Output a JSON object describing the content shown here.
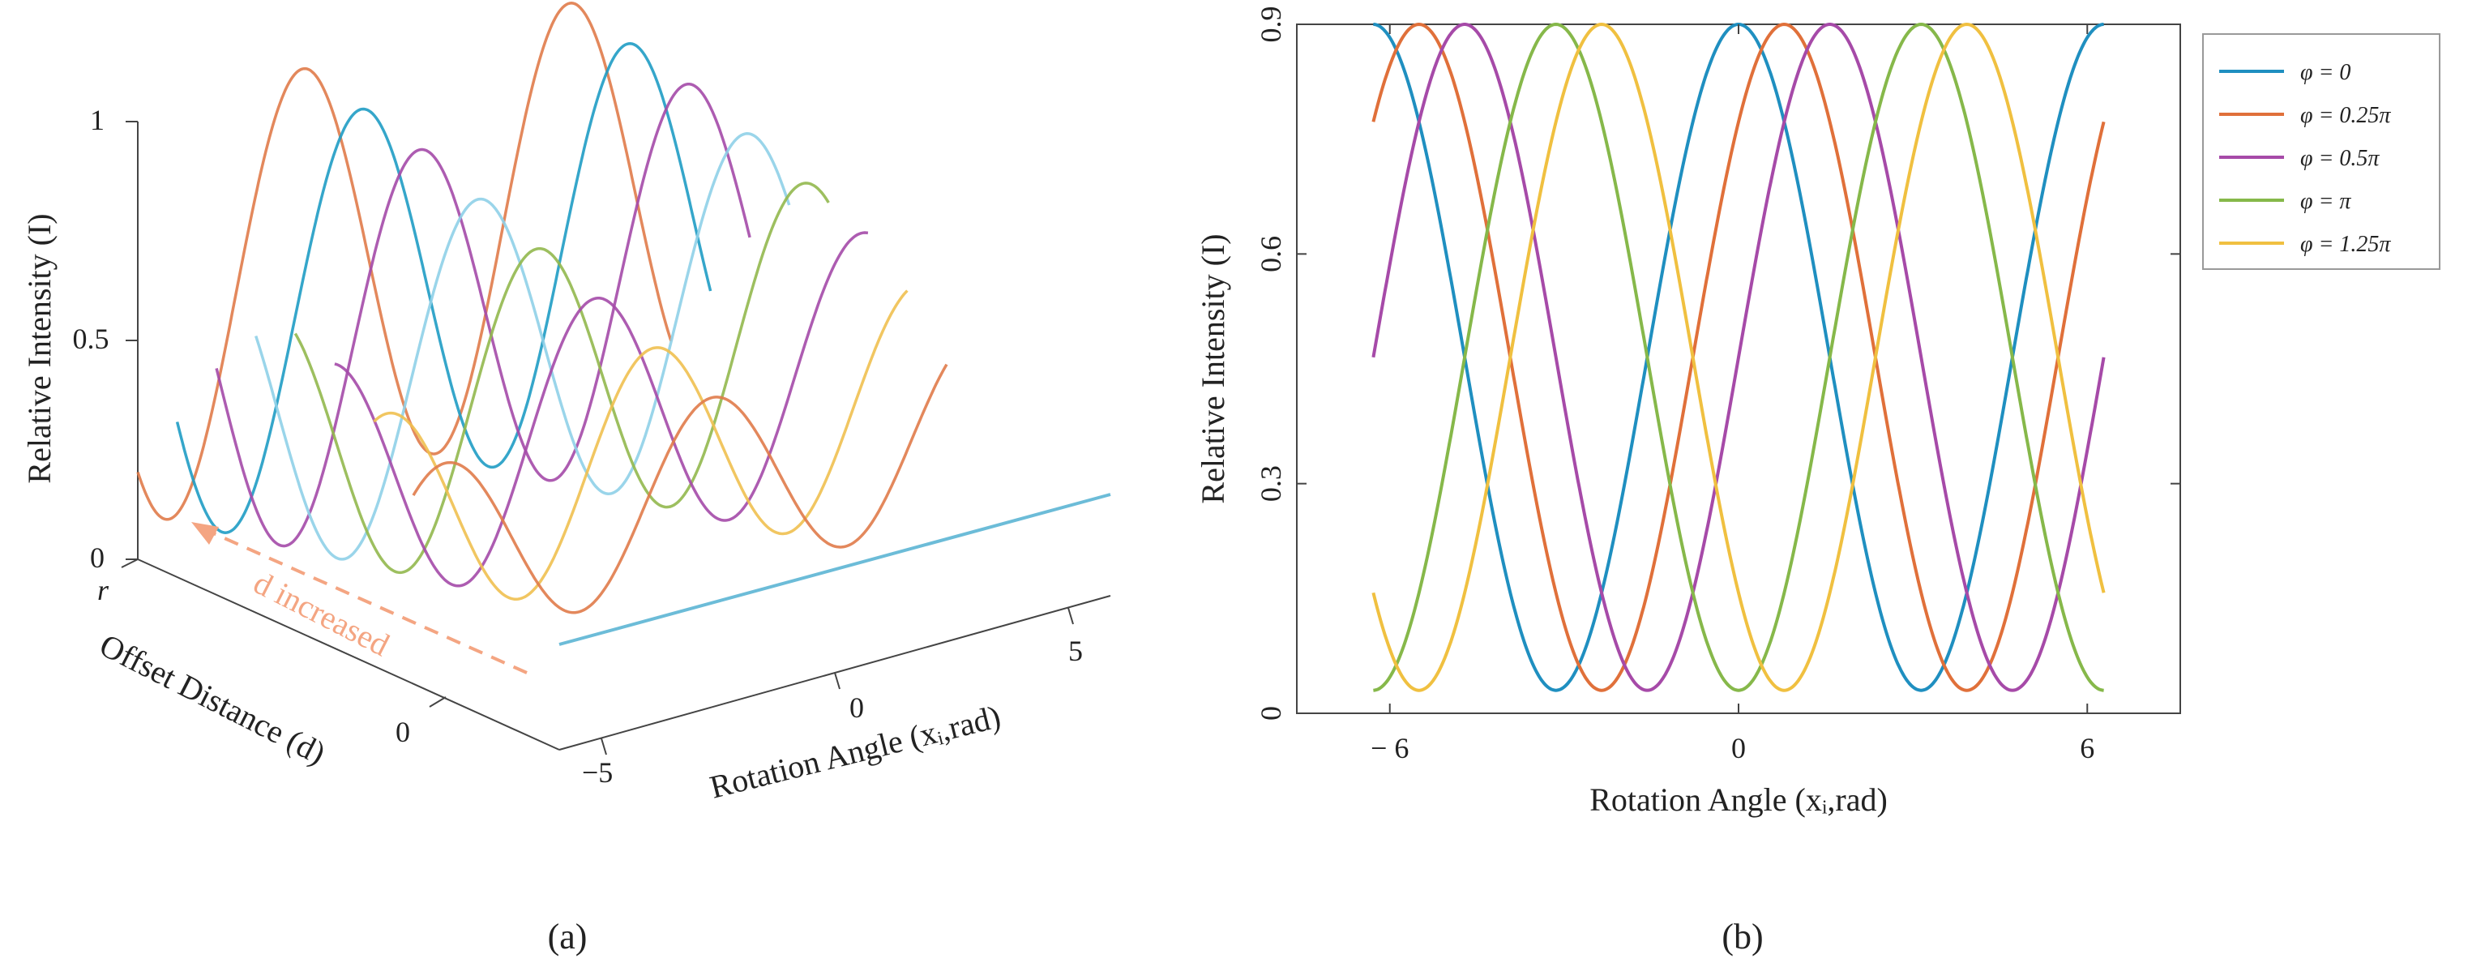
{
  "panel_labels": {
    "a": "(a)",
    "b": "(b)"
  },
  "chart_data": [
    {
      "type": "line",
      "id": "panel-a",
      "title": "",
      "xlabel": "Rotation Angle (xᵢ,rad)",
      "ylabel": "Offset Distance (d)",
      "zlabel": "Relative Intensity (I)",
      "x_ticks": [
        "−5",
        "0",
        "5"
      ],
      "y_ticks": [
        "r",
        "0"
      ],
      "z_ticks": [
        "0",
        "0.5",
        "1"
      ],
      "xlim": [
        -6.28,
        6.28
      ],
      "zlim": [
        0,
        1
      ],
      "annotation": "d increased",
      "colors": [
        "#e07b4a",
        "#1f9cc4",
        "#8fd0e8",
        "#92b84e",
        "#a44aa8",
        "#f0c050"
      ],
      "series": [
        {
          "d_index": 0,
          "color": "#e07b4a",
          "peak": 0.92,
          "phase": 0.0
        },
        {
          "d_index": 1,
          "color": "#1f9cc4",
          "peak": 0.86,
          "phase": 0.45
        },
        {
          "d_index": 2,
          "color": "#a44aa8",
          "peak": 0.8,
          "phase": 0.9
        },
        {
          "d_index": 3,
          "color": "#8fd0e8",
          "peak": 0.72,
          "phase": 1.35
        },
        {
          "d_index": 4,
          "color": "#92b84e",
          "peak": 0.64,
          "phase": 1.8
        },
        {
          "d_index": 5,
          "color": "#a44aa8",
          "peak": 0.56,
          "phase": 2.25
        },
        {
          "d_index": 6,
          "color": "#f0c050",
          "peak": 0.48,
          "phase": 2.7
        },
        {
          "d_index": 7,
          "color": "#e07b4a",
          "peak": 0.4,
          "phase": 3.15
        }
      ]
    },
    {
      "type": "line",
      "id": "panel-b",
      "title": "",
      "xlabel": "Rotation Angle (xᵢ,rad)",
      "ylabel": "Relative Intensity (I)",
      "xlim": [
        -7.6,
        7.6
      ],
      "ylim": [
        0,
        0.9
      ],
      "x_ticks": [
        {
          "value": -6,
          "label": "− 6"
        },
        {
          "value": 0,
          "label": "0"
        },
        {
          "value": 6,
          "label": "6"
        }
      ],
      "y_ticks": [
        {
          "value": 0,
          "label": "0"
        },
        {
          "value": 0.3,
          "label": "0.3"
        },
        {
          "value": 0.6,
          "label": "0.6"
        },
        {
          "value": 0.9,
          "label": "0.9"
        }
      ],
      "legend_position": "outside-right-top",
      "series": [
        {
          "name": "φ = 0",
          "color": "#1f8fc0",
          "phi": 0.0
        },
        {
          "name": "φ = 0.25π",
          "color": "#e0703a",
          "phi": 0.25
        },
        {
          "name": "φ = 0.5π",
          "color": "#a64aa8",
          "phi": 0.5
        },
        {
          "name": "φ = π",
          "color": "#86b84a",
          "phi": 1.0
        },
        {
          "name": "φ = 1.25π",
          "color": "#f0c040",
          "phi": 1.25
        }
      ]
    }
  ]
}
